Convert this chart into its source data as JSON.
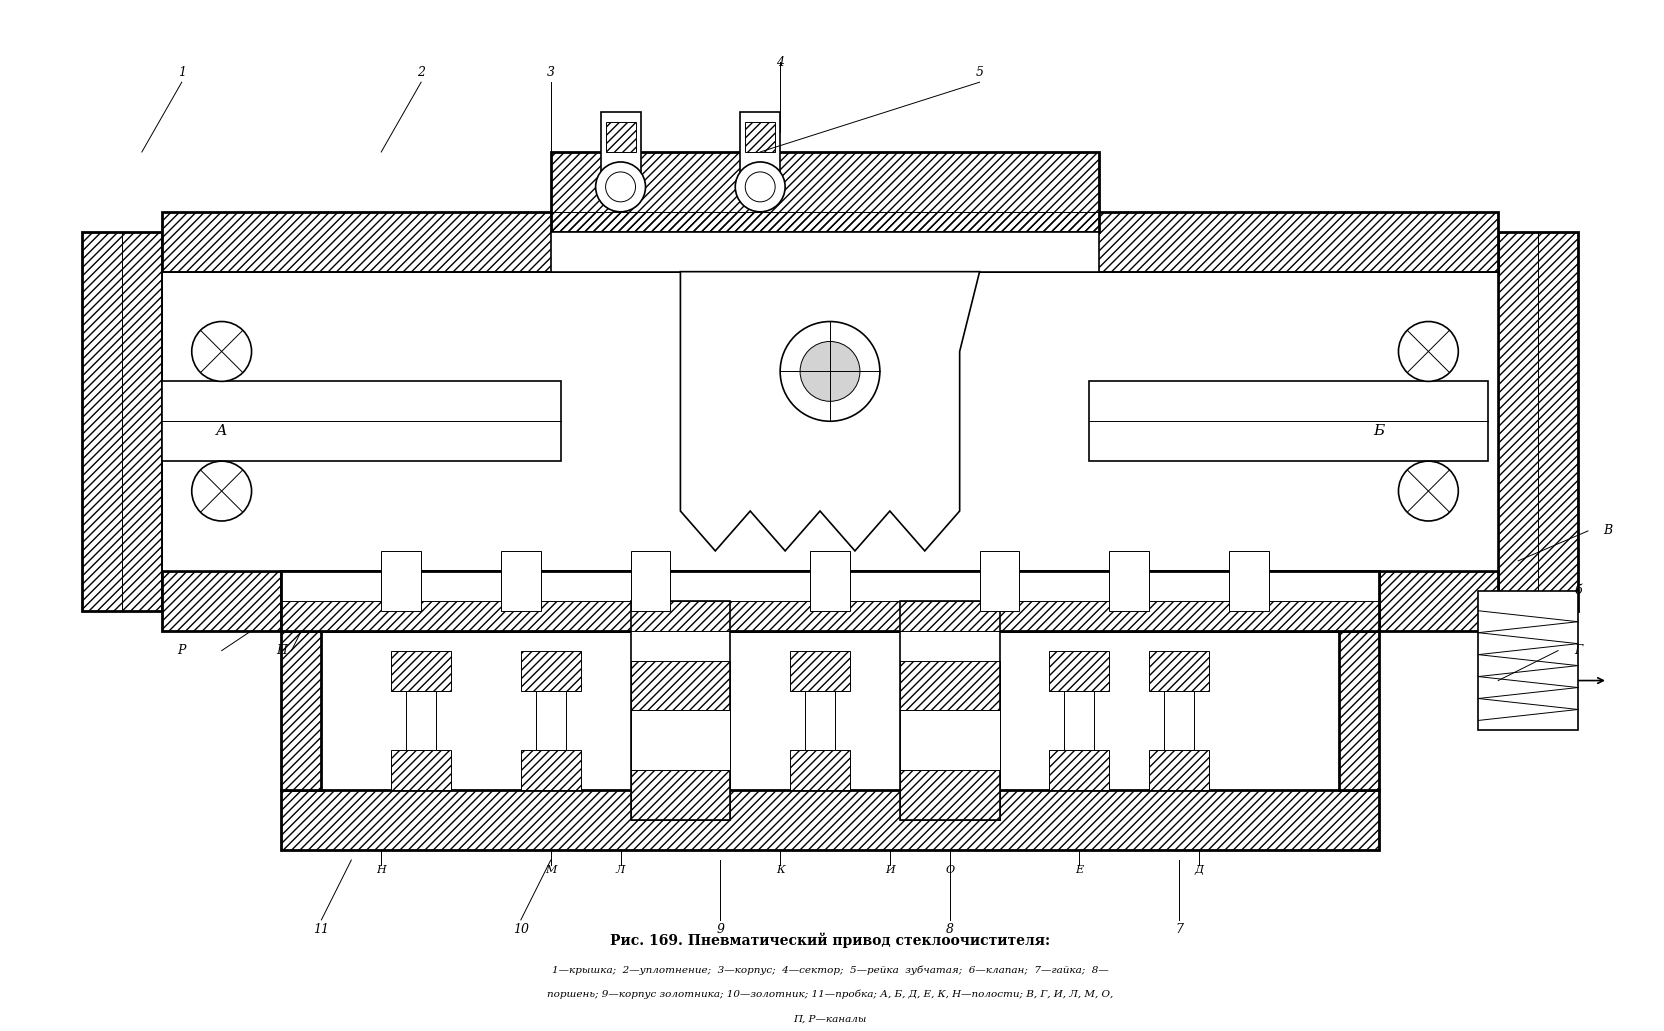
{
  "title_line1": "Рис. 169. Пневматический привод стеклоочистителя:",
  "caption_line1": "1—крышка;  2—уплотнение;  3—корпус;  4—сектор;  5—рейка  зубчатая;  6—клапан;  7—гайка;  8—",
  "caption_line2": "поршень; 9—корпус золотника; 10—золотник; 11—пробка; А, Б, Д, Е, К, Н—полости; В, Г, И, Л, М, О,",
  "caption_line3": "П, Р—каналы",
  "bg_color": "#ffffff",
  "line_color": "#000000",
  "hatch_color": "#000000",
  "fig_width": 16.65,
  "fig_height": 10.31,
  "dpi": 100
}
